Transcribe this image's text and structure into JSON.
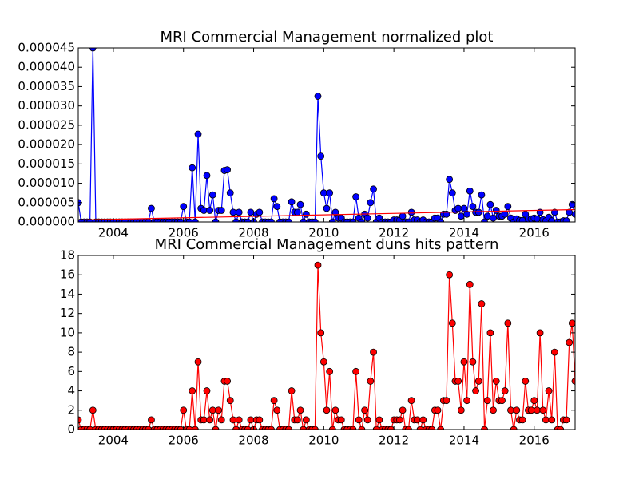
{
  "chart_data": [
    {
      "type": "line",
      "title": "MRI Commercial Management normalized plot",
      "x": [
        2003,
        2003.083,
        2003.167,
        2003.25,
        2003.333,
        2003.417,
        2003.5,
        2003.583,
        2003.667,
        2003.75,
        2003.833,
        2003.917,
        2004,
        2004.083,
        2004.167,
        2004.25,
        2004.333,
        2004.417,
        2004.5,
        2004.583,
        2004.667,
        2004.75,
        2004.833,
        2004.917,
        2005,
        2005.083,
        2005.167,
        2005.25,
        2005.333,
        2005.417,
        2005.5,
        2005.583,
        2005.667,
        2005.75,
        2005.833,
        2005.917,
        2006,
        2006.083,
        2006.167,
        2006.25,
        2006.333,
        2006.417,
        2006.5,
        2006.583,
        2006.667,
        2006.75,
        2006.833,
        2006.917,
        2007,
        2007.083,
        2007.167,
        2007.25,
        2007.333,
        2007.417,
        2007.5,
        2007.583,
        2007.667,
        2007.75,
        2007.833,
        2007.917,
        2008,
        2008.083,
        2008.167,
        2008.25,
        2008.333,
        2008.417,
        2008.5,
        2008.583,
        2008.667,
        2008.75,
        2008.833,
        2008.917,
        2009,
        2009.083,
        2009.167,
        2009.25,
        2009.333,
        2009.417,
        2009.5,
        2009.583,
        2009.667,
        2009.75,
        2009.833,
        2009.917,
        2010,
        2010.083,
        2010.167,
        2010.25,
        2010.333,
        2010.417,
        2010.5,
        2010.583,
        2010.667,
        2010.75,
        2010.833,
        2010.917,
        2011,
        2011.083,
        2011.167,
        2011.25,
        2011.333,
        2011.417,
        2011.5,
        2011.583,
        2011.667,
        2011.75,
        2011.833,
        2011.917,
        2012,
        2012.083,
        2012.167,
        2012.25,
        2012.333,
        2012.417,
        2012.5,
        2012.583,
        2012.667,
        2012.75,
        2012.833,
        2012.917,
        2013,
        2013.083,
        2013.167,
        2013.25,
        2013.333,
        2013.417,
        2013.5,
        2013.583,
        2013.667,
        2013.75,
        2013.833,
        2013.917,
        2014,
        2014.083,
        2014.167,
        2014.25,
        2014.333,
        2014.417,
        2014.5,
        2014.583,
        2014.667,
        2014.75,
        2014.833,
        2014.917,
        2015,
        2015.083,
        2015.167,
        2015.25,
        2015.333,
        2015.417,
        2015.5,
        2015.583,
        2015.667,
        2015.75,
        2015.833,
        2015.917,
        2016,
        2016.083,
        2016.167,
        2016.25,
        2016.333,
        2016.417,
        2016.5,
        2016.583,
        2016.667,
        2016.75,
        2016.833,
        2016.917,
        2017,
        2017.083,
        2017.167
      ],
      "series": [
        {
          "color": "#0000ff",
          "marker": true,
          "values": [
            5e-06,
            0,
            0,
            0,
            0,
            4.5e-05,
            0,
            0,
            0,
            0,
            0,
            0,
            0,
            0,
            0,
            0,
            0,
            0,
            0,
            0,
            0,
            0,
            0,
            0,
            0,
            3.5e-06,
            0,
            0,
            0,
            0,
            0,
            0,
            0,
            0,
            0,
            0,
            4e-06,
            0,
            0,
            1.4e-05,
            0,
            2.27e-05,
            3.5e-06,
            3e-06,
            1.2e-05,
            3e-06,
            7e-06,
            0,
            3e-06,
            3e-06,
            1.33e-05,
            1.35e-05,
            7.5e-06,
            2.5e-06,
            0,
            2.5e-06,
            0,
            0,
            0,
            2.5e-06,
            0,
            2e-06,
            2.5e-06,
            0,
            0,
            0,
            0,
            6e-06,
            4e-06,
            0,
            0,
            0,
            0,
            5.2e-06,
            2.5e-06,
            2.5e-06,
            4.5e-06,
            0,
            2e-06,
            0,
            0,
            0,
            3.25e-05,
            1.7e-05,
            7.5e-06,
            3.5e-06,
            7.5e-06,
            0,
            2.5e-06,
            1e-06,
            1e-06,
            0,
            0,
            0,
            0,
            6.5e-06,
            1e-06,
            0,
            2e-06,
            1e-06,
            5e-06,
            8.5e-06,
            0,
            1e-06,
            0,
            0,
            0,
            0,
            5e-07,
            5e-07,
            5e-07,
            1.5e-06,
            0,
            0,
            2.5e-06,
            5e-07,
            5e-07,
            0,
            5e-07,
            0,
            0,
            0,
            1e-06,
            1e-06,
            0,
            2e-06,
            2e-06,
            1.1e-05,
            7.5e-06,
            3e-06,
            3.5e-06,
            1.5e-06,
            3.5e-06,
            2e-06,
            8e-06,
            4e-06,
            2.5e-06,
            2.5e-06,
            7e-06,
            0,
            1.5e-06,
            4.5e-06,
            1e-06,
            3e-06,
            1.5e-06,
            1.5e-06,
            2e-06,
            4e-06,
            1e-06,
            0,
            8e-07,
            4e-07,
            4e-07,
            2e-06,
            8e-07,
            8e-07,
            1e-06,
            8e-07,
            2.5e-06,
            6e-07,
            3e-07,
            1.2e-06,
            3e-07,
            2.5e-06,
            0,
            0,
            3e-07,
            3e-07,
            2.5e-06,
            4.5e-06,
            2e-06
          ]
        },
        {
          "color": "#ff0000",
          "marker": false,
          "x": [
            2003,
            2017.167
          ],
          "values": [
            5e-07,
            3.2e-06
          ]
        }
      ],
      "xlim": [
        2003,
        2017.167
      ],
      "ylim": [
        0,
        4.5e-05
      ],
      "xticks": [
        2004,
        2006,
        2008,
        2010,
        2012,
        2014,
        2016
      ],
      "yticks": [
        {
          "value": 0,
          "label": "0.000000"
        },
        {
          "value": 5e-06,
          "label": "0.000005"
        },
        {
          "value": 1e-05,
          "label": "0.000010"
        },
        {
          "value": 1.5e-05,
          "label": "0.000015"
        },
        {
          "value": 2e-05,
          "label": "0.000020"
        },
        {
          "value": 2.5e-05,
          "label": "0.000025"
        },
        {
          "value": 3e-05,
          "label": "0.000030"
        },
        {
          "value": 3.5e-05,
          "label": "0.000035"
        },
        {
          "value": 4e-05,
          "label": "0.000040"
        },
        {
          "value": 4.5e-05,
          "label": "0.000045"
        }
      ]
    },
    {
      "type": "line",
      "title": "MRI Commercial Management duns hits pattern",
      "x": [
        2003,
        2003.083,
        2003.167,
        2003.25,
        2003.333,
        2003.417,
        2003.5,
        2003.583,
        2003.667,
        2003.75,
        2003.833,
        2003.917,
        2004,
        2004.083,
        2004.167,
        2004.25,
        2004.333,
        2004.417,
        2004.5,
        2004.583,
        2004.667,
        2004.75,
        2004.833,
        2004.917,
        2005,
        2005.083,
        2005.167,
        2005.25,
        2005.333,
        2005.417,
        2005.5,
        2005.583,
        2005.667,
        2005.75,
        2005.833,
        2005.917,
        2006,
        2006.083,
        2006.167,
        2006.25,
        2006.333,
        2006.417,
        2006.5,
        2006.583,
        2006.667,
        2006.75,
        2006.833,
        2006.917,
        2007,
        2007.083,
        2007.167,
        2007.25,
        2007.333,
        2007.417,
        2007.5,
        2007.583,
        2007.667,
        2007.75,
        2007.833,
        2007.917,
        2008,
        2008.083,
        2008.167,
        2008.25,
        2008.333,
        2008.417,
        2008.5,
        2008.583,
        2008.667,
        2008.75,
        2008.833,
        2008.917,
        2009,
        2009.083,
        2009.167,
        2009.25,
        2009.333,
        2009.417,
        2009.5,
        2009.583,
        2009.667,
        2009.75,
        2009.833,
        2009.917,
        2010,
        2010.083,
        2010.167,
        2010.25,
        2010.333,
        2010.417,
        2010.5,
        2010.583,
        2010.667,
        2010.75,
        2010.833,
        2010.917,
        2011,
        2011.083,
        2011.167,
        2011.25,
        2011.333,
        2011.417,
        2011.5,
        2011.583,
        2011.667,
        2011.75,
        2011.833,
        2011.917,
        2012,
        2012.083,
        2012.167,
        2012.25,
        2012.333,
        2012.417,
        2012.5,
        2012.583,
        2012.667,
        2012.75,
        2012.833,
        2012.917,
        2013,
        2013.083,
        2013.167,
        2013.25,
        2013.333,
        2013.417,
        2013.5,
        2013.583,
        2013.667,
        2013.75,
        2013.833,
        2013.917,
        2014,
        2014.083,
        2014.167,
        2014.25,
        2014.333,
        2014.417,
        2014.5,
        2014.583,
        2014.667,
        2014.75,
        2014.833,
        2014.917,
        2015,
        2015.083,
        2015.167,
        2015.25,
        2015.333,
        2015.417,
        2015.5,
        2015.583,
        2015.667,
        2015.75,
        2015.833,
        2015.917,
        2016,
        2016.083,
        2016.167,
        2016.25,
        2016.333,
        2016.417,
        2016.5,
        2016.583,
        2016.667,
        2016.75,
        2016.833,
        2016.917,
        2017,
        2017.083,
        2017.167
      ],
      "series": [
        {
          "color": "#ff0000",
          "marker": true,
          "values": [
            1,
            0,
            0,
            0,
            0,
            2,
            0,
            0,
            0,
            0,
            0,
            0,
            0,
            0,
            0,
            0,
            0,
            0,
            0,
            0,
            0,
            0,
            0,
            0,
            0,
            1,
            0,
            0,
            0,
            0,
            0,
            0,
            0,
            0,
            0,
            0,
            2,
            0,
            0,
            4,
            0,
            7,
            1,
            1,
            4,
            1,
            2,
            0,
            2,
            1,
            5,
            5,
            3,
            1,
            0,
            1,
            0,
            0,
            0,
            1,
            0,
            1,
            1,
            0,
            0,
            0,
            0,
            3,
            2,
            0,
            0,
            0,
            0,
            4,
            1,
            1,
            2,
            0,
            1,
            0,
            0,
            0,
            17,
            10,
            7,
            2,
            6,
            0,
            2,
            1,
            1,
            0,
            0,
            0,
            0,
            6,
            1,
            0,
            2,
            1,
            5,
            8,
            0,
            1,
            0,
            0,
            0,
            0,
            1,
            1,
            1,
            2,
            0,
            0,
            3,
            1,
            1,
            0,
            1,
            0,
            0,
            0,
            2,
            2,
            0,
            3,
            3,
            16,
            11,
            5,
            5,
            2,
            7,
            3,
            15,
            7,
            4,
            5,
            13,
            0,
            3,
            10,
            2,
            5,
            3,
            3,
            4,
            11,
            2,
            0,
            2,
            1,
            1,
            5,
            2,
            2,
            3,
            2,
            10,
            2,
            1,
            4,
            1,
            8,
            0,
            0,
            1,
            1,
            9,
            11,
            5
          ]
        }
      ],
      "xlim": [
        2003,
        2017.167
      ],
      "ylim": [
        0,
        18
      ],
      "xticks": [
        2004,
        2006,
        2008,
        2010,
        2012,
        2014,
        2016
      ],
      "yticks": [
        0,
        2,
        4,
        6,
        8,
        10,
        12,
        14,
        16,
        18
      ]
    }
  ]
}
